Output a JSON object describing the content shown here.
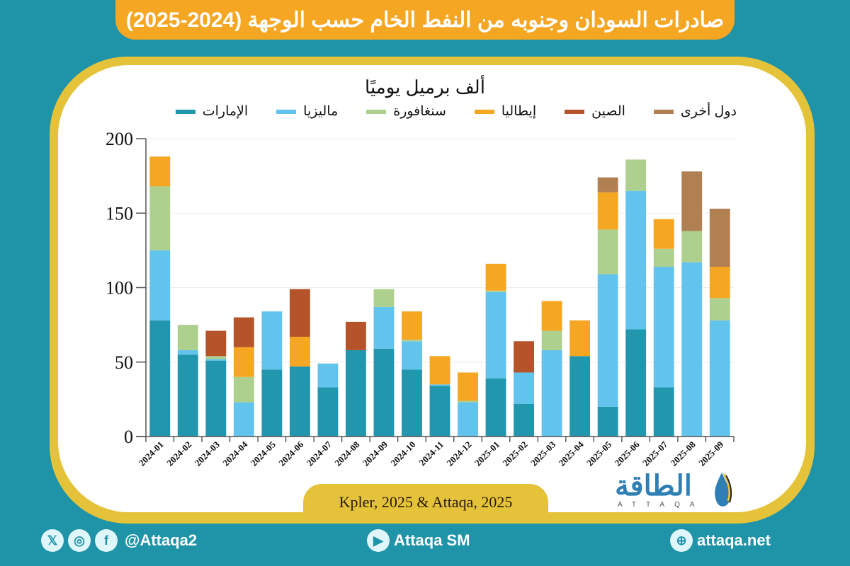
{
  "header": {
    "title": "صادرات السودان وجنوبه من النفط الخام حسب الوجهة (2024-2025)"
  },
  "source": "Kpler, 2025 & Attaqa, 2025",
  "logo": {
    "arabic": "الطاقة",
    "latin": "ATTAQA"
  },
  "footer": {
    "social_handle": "@Attaqa2",
    "youtube": "Attaqa SM",
    "website": "attaqa.net",
    "icons": [
      "x-icon",
      "instagram-icon",
      "facebook-icon",
      "youtube-icon",
      "globe-icon"
    ]
  },
  "chart_data": {
    "type": "bar",
    "stacked": true,
    "title": "ألف برميل يوميًا",
    "xlabel": "",
    "ylabel": "ألف برميل يوميًا",
    "ylim": [
      0,
      200
    ],
    "yticks": [
      0,
      50,
      100,
      150,
      200
    ],
    "grid": true,
    "legend_position": "top",
    "categories": [
      "2024-01",
      "2024-02",
      "2024-03",
      "2024-04",
      "2024-05",
      "2024-06",
      "2024-07",
      "2024-08",
      "2024-09",
      "2024-10",
      "2024-11",
      "2024-12",
      "2025-01",
      "2025-02",
      "2025-03",
      "2025-04",
      "2025-05",
      "2025-06",
      "2025-07",
      "2025-08",
      "2025-09"
    ],
    "series": [
      {
        "name": "الإمارات",
        "color": "#2196ad",
        "values": [
          78,
          55,
          51,
          0,
          45,
          47,
          33,
          58,
          59,
          45,
          34,
          0,
          39,
          22,
          0,
          54,
          20,
          72,
          33,
          0,
          0
        ]
      },
      {
        "name": "ماليزيا",
        "color": "#62c3ed",
        "values": [
          47,
          3,
          1,
          23,
          39,
          0,
          16,
          0,
          28,
          19,
          1,
          23,
          58,
          21,
          58,
          0,
          89,
          93,
          81,
          117,
          78
        ]
      },
      {
        "name": "سنغافورة",
        "color": "#aed08f",
        "values": [
          43,
          17,
          2,
          17,
          0,
          0,
          0,
          0,
          12,
          1,
          0,
          1,
          1,
          0,
          13,
          0,
          30,
          21,
          12,
          21,
          15
        ]
      },
      {
        "name": "إيطاليا",
        "color": "#f5a623",
        "values": [
          20,
          0,
          0,
          20,
          0,
          20,
          0,
          0,
          0,
          19,
          19,
          19,
          18,
          0,
          20,
          24,
          25,
          0,
          20,
          0,
          21
        ]
      },
      {
        "name": "الصين",
        "color": "#b5532a",
        "values": [
          0,
          0,
          17,
          20,
          0,
          32,
          0,
          19,
          0,
          0,
          0,
          0,
          0,
          21,
          0,
          0,
          0,
          0,
          0,
          0,
          0
        ]
      },
      {
        "name": "دول أخرى",
        "color": "#b07f52",
        "values": [
          0,
          0,
          0,
          0,
          0,
          0,
          0,
          0,
          0,
          0,
          0,
          0,
          0,
          0,
          0,
          0,
          10,
          0,
          0,
          40,
          39
        ]
      }
    ]
  }
}
